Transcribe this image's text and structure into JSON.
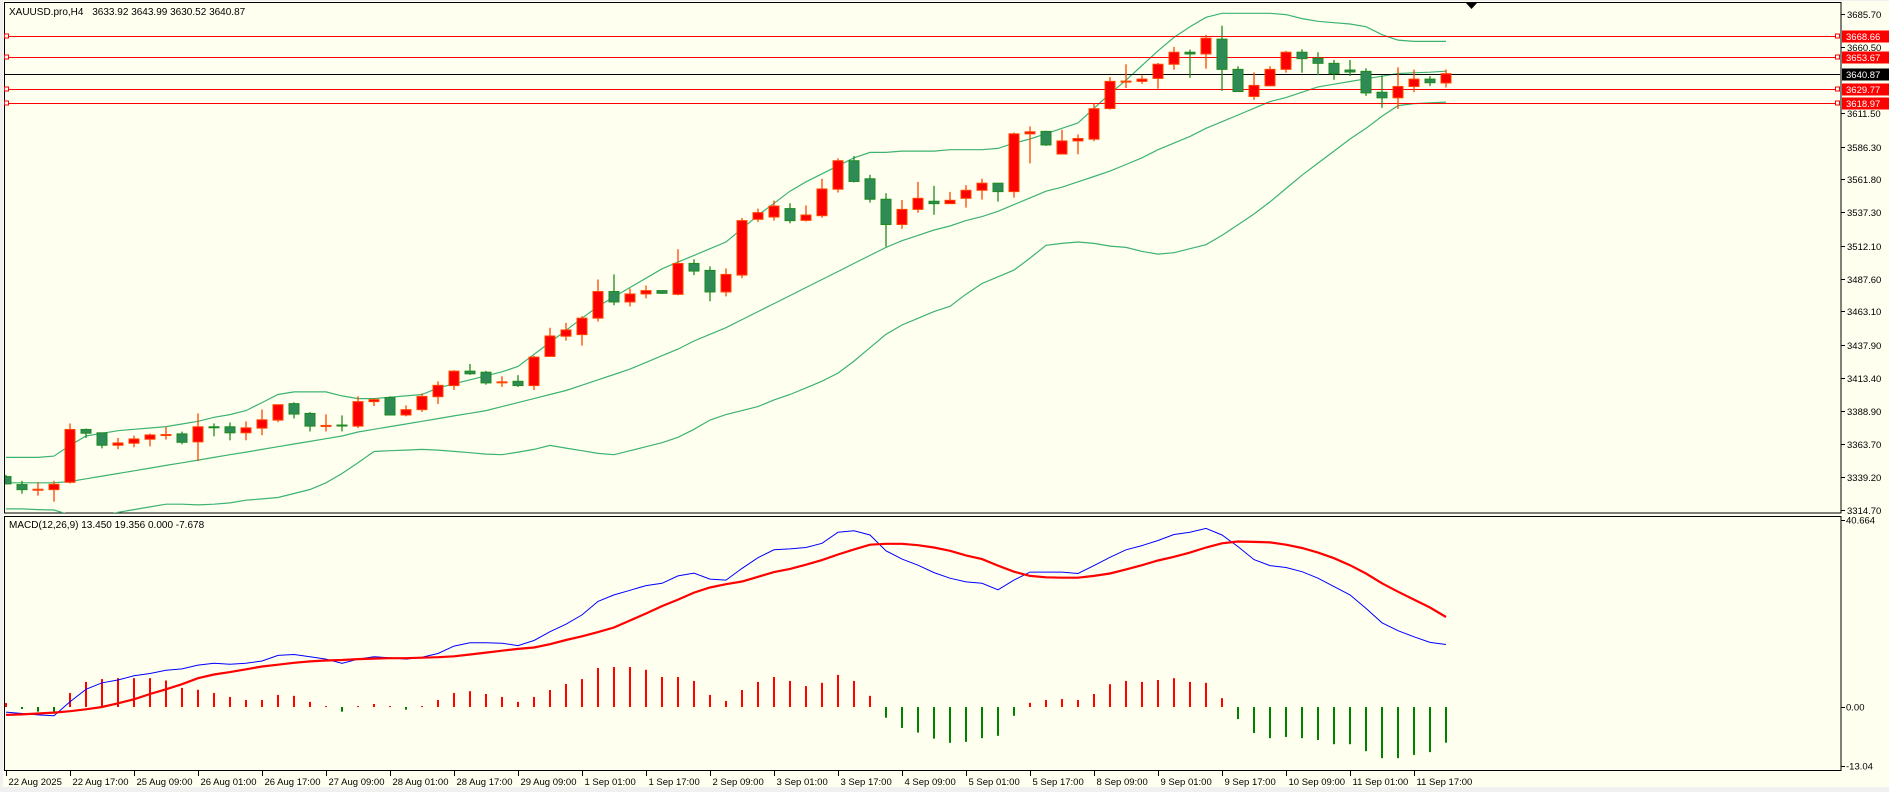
{
  "header": {
    "symbol": "XAUUSD.pro,H4",
    "open": "3633.92",
    "high": "3643.99",
    "low": "3630.52",
    "close": "3640.87"
  },
  "colors": {
    "background": "#fffff0",
    "bull_body": "#ff0000",
    "bull_edge": "#ff4500",
    "bear_body": "#2e8b57",
    "bear_edge": "#1e8a1e",
    "bands": "#3cb371",
    "level_line": "#ff0000",
    "price_line": "#000000",
    "macd_main": "#0000ff",
    "macd_signal": "#ff0000",
    "hist_up": "#ff0000",
    "hist_down": "#008000"
  },
  "price_axis": {
    "ticks": [
      "3685.70",
      "3660.50",
      "3611.50",
      "3586.30",
      "3561.80",
      "3537.30",
      "3512.10",
      "3487.60",
      "3463.10",
      "3437.90",
      "3413.40",
      "3388.90",
      "3363.70",
      "3339.20",
      "3314.70"
    ]
  },
  "price_lines": [
    {
      "value": "3668.66",
      "kind": "level"
    },
    {
      "value": "3653.67",
      "kind": "level"
    },
    {
      "value": "3640.87",
      "kind": "current"
    },
    {
      "value": "3629.77",
      "kind": "level"
    },
    {
      "value": "3618.97",
      "kind": "level"
    }
  ],
  "time_axis": {
    "labels": [
      "22 Aug 2025",
      "22 Aug 17:00",
      "25 Aug 09:00",
      "26 Aug 01:00",
      "26 Aug 17:00",
      "27 Aug 09:00",
      "28 Aug 01:00",
      "28 Aug 17:00",
      "29 Aug 09:00",
      "1 Sep 01:00",
      "1 Sep 17:00",
      "2 Sep 09:00",
      "3 Sep 01:00",
      "3 Sep 17:00",
      "4 Sep 09:00",
      "5 Sep 01:00",
      "5 Sep 17:00",
      "8 Sep 09:00",
      "9 Sep 01:00",
      "9 Sep 17:00",
      "10 Sep 09:00",
      "11 Sep 01:00",
      "11 Sep 17:00"
    ]
  },
  "macd_panel": {
    "label": "MACD(12,26,9) 13.450 19.356 0.000 -7.678",
    "axis_ticks": [
      "40.664",
      "0.00",
      "-13.04"
    ]
  },
  "chart_data": {
    "type": "candlestick",
    "title": "XAUUSD.pro,H4",
    "ylim": [
      3312.5,
      3688.0
    ],
    "ohlc": [
      [
        3339.7,
        3341,
        3334,
        3334.2
      ],
      [
        3333.7,
        3336.5,
        3326.9,
        3329.9
      ],
      [
        3329.9,
        3335.4,
        3325.4,
        3330.2
      ],
      [
        3329.9,
        3336.5,
        3320.9,
        3333.9
      ],
      [
        3335.4,
        3379.4,
        3334.5,
        3374.9
      ],
      [
        3374.9,
        3375.6,
        3368.6,
        3372.1
      ],
      [
        3372.4,
        3372.4,
        3360.8,
        3363.1
      ],
      [
        3363.1,
        3368.6,
        3360.1,
        3364.8
      ],
      [
        3364.6,
        3370.3,
        3361.6,
        3367.8
      ],
      [
        3367.6,
        3371.8,
        3362.3,
        3370.8
      ],
      [
        3370.7,
        3376.9,
        3367.3,
        3371.1
      ],
      [
        3371.6,
        3373.3,
        3363.8,
        3365.3
      ],
      [
        3365.6,
        3386.9,
        3351.3,
        3376.9
      ],
      [
        3376.9,
        3379.4,
        3369.8,
        3376.7
      ],
      [
        3376.9,
        3380.1,
        3366.8,
        3372.4
      ],
      [
        3372.4,
        3380.9,
        3366.8,
        3376.1
      ],
      [
        3375.9,
        3389.9,
        3370.6,
        3382.1
      ],
      [
        3381.9,
        3393.4,
        3380.4,
        3393.4
      ],
      [
        3394.2,
        3395.2,
        3383.1,
        3386.4
      ],
      [
        3386.9,
        3387.9,
        3373.4,
        3377.4
      ],
      [
        3377.7,
        3386.2,
        3373.4,
        3377.9
      ],
      [
        3378.2,
        3385.4,
        3373.4,
        3378.0
      ],
      [
        3377.4,
        3399.7,
        3375.9,
        3395.7
      ],
      [
        3395.7,
        3398.2,
        3392.4,
        3397.2
      ],
      [
        3398.7,
        3399.7,
        3385.7,
        3385.7
      ],
      [
        3385.7,
        3392.9,
        3384.7,
        3389.7
      ],
      [
        3389.7,
        3401.9,
        3388.0,
        3399.6
      ],
      [
        3399.4,
        3410.9,
        3393.9,
        3407.9
      ],
      [
        3407.7,
        3419.2,
        3404.4,
        3418.5
      ],
      [
        3418.5,
        3423.8,
        3415.7,
        3416.5
      ],
      [
        3417.7,
        3418.7,
        3408.4,
        3409.7
      ],
      [
        3410.3,
        3414.7,
        3406.7,
        3410.5
      ],
      [
        3410.9,
        3415.5,
        3406.7,
        3407.7
      ],
      [
        3407.7,
        3430.0,
        3404.4,
        3429.0
      ],
      [
        3429.5,
        3450.9,
        3429.5,
        3444.8
      ],
      [
        3444.6,
        3454.6,
        3441.3,
        3449.3
      ],
      [
        3445.8,
        3459.6,
        3437.6,
        3458.1
      ],
      [
        3458.1,
        3487.0,
        3455.6,
        3478.0
      ],
      [
        3478.0,
        3490.8,
        3467.7,
        3470.2
      ],
      [
        3470.2,
        3480.2,
        3466.9,
        3476.2
      ],
      [
        3476.2,
        3482.5,
        3472.9,
        3478.7
      ],
      [
        3478.7,
        3478.7,
        3476.2,
        3476.7
      ],
      [
        3475.9,
        3509.6,
        3475.2,
        3499.0
      ],
      [
        3499.0,
        3502.1,
        3490.3,
        3493.3
      ],
      [
        3493.8,
        3496.8,
        3470.7,
        3477.7
      ],
      [
        3477.7,
        3495.3,
        3474.4,
        3490.8
      ],
      [
        3490.3,
        3533,
        3488,
        3531
      ],
      [
        3532,
        3540,
        3530,
        3537
      ],
      [
        3533.7,
        3546,
        3531,
        3541.9
      ],
      [
        3540,
        3544,
        3529,
        3531
      ],
      [
        3531.2,
        3542.4,
        3530.4,
        3535.2
      ],
      [
        3534.7,
        3562.3,
        3533.2,
        3554.7
      ],
      [
        3554.5,
        3577.6,
        3552.0,
        3575.8
      ],
      [
        3575.8,
        3579.3,
        3559.5,
        3560.3
      ],
      [
        3562.3,
        3565.3,
        3544.5,
        3547.0
      ],
      [
        3547.0,
        3551.5,
        3511.6,
        3528.1
      ],
      [
        3528.1,
        3546.5,
        3524.9,
        3539.4
      ],
      [
        3539.4,
        3560.0,
        3536.9,
        3547.7
      ],
      [
        3545.5,
        3557.0,
        3535.4,
        3543.7
      ],
      [
        3543.7,
        3552.5,
        3543.7,
        3546.2
      ],
      [
        3547.7,
        3557.5,
        3540.7,
        3553.7
      ],
      [
        3553.7,
        3562.3,
        3546.7,
        3559.0
      ],
      [
        3559.0,
        3559.0,
        3545.2,
        3552.7
      ],
      [
        3552.7,
        3596.9,
        3548.2,
        3595.9
      ],
      [
        3595.9,
        3601.4,
        3573.8,
        3597.4
      ],
      [
        3597.7,
        3598.2,
        3586.9,
        3587.6
      ],
      [
        3580.8,
        3598.9,
        3580.8,
        3590.6
      ],
      [
        3590.6,
        3595.4,
        3580.6,
        3592.4
      ],
      [
        3591.9,
        3618.8,
        3590.4,
        3614.7
      ],
      [
        3614.8,
        3638.3,
        3614.0,
        3635.1
      ],
      [
        3635.1,
        3647.9,
        3630.1,
        3635.3
      ],
      [
        3635.1,
        3639.6,
        3633.3,
        3636.8
      ],
      [
        3637.3,
        3648.9,
        3629.6,
        3647.9
      ],
      [
        3647.9,
        3660.9,
        3643.8,
        3656.9
      ],
      [
        3656.9,
        3658.9,
        3637.8,
        3655.6
      ],
      [
        3655.6,
        3669.9,
        3644.6,
        3667.4
      ],
      [
        3666.7,
        3676.7,
        3628.0,
        3644.1
      ],
      [
        3644.1,
        3646.4,
        3627.5,
        3627.5
      ],
      [
        3623.8,
        3641.8,
        3621.3,
        3632.1
      ],
      [
        3631.8,
        3646.4,
        3631.8,
        3644.1
      ],
      [
        3644.1,
        3657.9,
        3641.6,
        3656.9
      ],
      [
        3656.9,
        3659.1,
        3641.6,
        3652.1
      ],
      [
        3652.4,
        3656.9,
        3639.8,
        3648.6
      ],
      [
        3648.6,
        3651.1,
        3636.3,
        3640.8
      ],
      [
        3643.6,
        3651.1,
        3639.1,
        3642.1
      ],
      [
        3642.6,
        3644.9,
        3624.3,
        3626.5
      ],
      [
        3627.0,
        3639.6,
        3615.3,
        3622.8
      ],
      [
        3622.8,
        3645.6,
        3614.5,
        3631.3
      ],
      [
        3631.3,
        3643.9,
        3627.0,
        3636.8
      ],
      [
        3636.8,
        3639.1,
        3631.6,
        3634.1
      ],
      [
        3633.92,
        3643.99,
        3630.52,
        3640.87
      ]
    ],
    "bollinger": {
      "upper": [
        3354,
        3354,
        3354,
        3355,
        3363,
        3370,
        3372,
        3374,
        3375,
        3376,
        3377,
        3379,
        3381,
        3384,
        3386,
        3389,
        3395,
        3401,
        3403,
        3403,
        3403,
        3400,
        3398,
        3398,
        3399,
        3400,
        3401,
        3406,
        3409,
        3412,
        3415,
        3418,
        3422,
        3431,
        3440,
        3449,
        3458,
        3467,
        3474,
        3481,
        3488,
        3495,
        3500,
        3505,
        3510,
        3515,
        3525,
        3535,
        3544,
        3553,
        3560,
        3566,
        3572,
        3578,
        3582,
        3582,
        3583,
        3583,
        3583,
        3584,
        3584,
        3584,
        3585,
        3589,
        3592,
        3596,
        3600,
        3604,
        3615,
        3626,
        3636,
        3647,
        3658,
        3668,
        3676,
        3683,
        3686,
        3686,
        3686,
        3686,
        3685,
        3682,
        3680,
        3679,
        3678,
        3676,
        3670,
        3666,
        3665,
        3665,
        3665
      ],
      "middle": [
        3335,
        3335,
        3335,
        3335,
        3336,
        3338,
        3340,
        3342,
        3344,
        3346,
        3348,
        3350,
        3352,
        3354,
        3356,
        3358,
        3360,
        3362,
        3364,
        3366,
        3368,
        3370,
        3373,
        3375,
        3377,
        3379,
        3381,
        3383,
        3385,
        3387,
        3389,
        3392,
        3395,
        3398,
        3401,
        3404,
        3408,
        3412,
        3416,
        3420,
        3425,
        3430,
        3435,
        3441,
        3446,
        3451,
        3457,
        3463,
        3469,
        3475,
        3481,
        3487,
        3493,
        3499,
        3505,
        3511,
        3516,
        3520,
        3524,
        3527,
        3531,
        3534,
        3538,
        3543,
        3548,
        3553,
        3556,
        3560,
        3564,
        3568,
        3573,
        3578,
        3584,
        3589,
        3594,
        3600,
        3605,
        3610,
        3615,
        3620,
        3623,
        3627,
        3631,
        3633,
        3635,
        3637,
        3639,
        3641,
        3641.5,
        3642,
        3642.7
      ],
      "lower": [
        3315.5,
        3315.5,
        3315,
        3314.7,
        3311,
        3308,
        3310,
        3313,
        3315,
        3317,
        3319,
        3319,
        3318.5,
        3319,
        3320,
        3322,
        3323,
        3324,
        3327,
        3330,
        3335,
        3342,
        3350,
        3358.4,
        3359,
        3359.5,
        3360,
        3359.5,
        3358.5,
        3357.5,
        3356.5,
        3356,
        3358,
        3360,
        3363,
        3361,
        3359,
        3357,
        3356,
        3359,
        3362,
        3365,
        3369,
        3375,
        3382,
        3386,
        3389,
        3392,
        3397,
        3401,
        3406,
        3411,
        3417,
        3426,
        3436,
        3446,
        3453,
        3458,
        3463,
        3467,
        3476,
        3484,
        3489,
        3494,
        3503,
        3512.6,
        3514,
        3515,
        3514,
        3512,
        3511,
        3508,
        3506,
        3507,
        3510,
        3513,
        3520,
        3528,
        3536,
        3545,
        3555,
        3565,
        3574,
        3583,
        3592,
        3600,
        3609,
        3617,
        3618.5,
        3619,
        3619.6
      ]
    },
    "macd": {
      "ylim": [
        -13.04,
        40.664
      ],
      "main": [
        -1.1,
        -1.4,
        -1.7,
        -1.9,
        1.15,
        3.8,
        5.2,
        5.8,
        6.7,
        7.2,
        7.9,
        8.2,
        9.0,
        9.4,
        9.2,
        9.4,
        9.9,
        11.1,
        11.3,
        10.8,
        10.3,
        9.4,
        10.3,
        10.8,
        10.6,
        10.3,
        10.7,
        11.5,
        13.1,
        13.8,
        13.8,
        13.7,
        13.2,
        14.3,
        16.2,
        17.8,
        19.8,
        22.7,
        24.1,
        25.1,
        26.1,
        26.6,
        28.2,
        28.8,
        27.5,
        27.3,
        29.8,
        32.1,
        33.8,
        34.0,
        34.3,
        35.2,
        37.6,
        37.9,
        37.0,
        33.6,
        31.8,
        30.5,
        28.9,
        27.7,
        26.9,
        26.6,
        25.2,
        27.3,
        29.0,
        29.0,
        29.0,
        28.7,
        30.4,
        32.2,
        33.8,
        34.7,
        35.8,
        37.1,
        37.6,
        38.4,
        37.0,
        34.5,
        31.7,
        30.4,
        30.0,
        29.1,
        27.7,
        25.9,
        24.1,
        21.2,
        18.1,
        16.4,
        15.1,
        13.9,
        13.45
      ],
      "signal": [
        -1.7,
        -1.6,
        -1.4,
        -1.2,
        -0.9,
        -0.5,
        0,
        0.8,
        1.65,
        2.8,
        3.8,
        4.9,
        6.2,
        7.0,
        7.5,
        8.1,
        8.7,
        9.1,
        9.5,
        9.8,
        10.0,
        10.1,
        10.3,
        10.4,
        10.5,
        10.5,
        10.6,
        10.7,
        10.9,
        11.3,
        11.7,
        12.1,
        12.5,
        12.8,
        13.5,
        14.4,
        15.2,
        16.1,
        17.1,
        18.6,
        20.1,
        21.7,
        23.1,
        24.6,
        25.7,
        26.4,
        27.0,
        28.0,
        29.0,
        29.7,
        30.6,
        31.6,
        32.8,
        33.9,
        34.9,
        35.1,
        35.1,
        34.8,
        34.3,
        33.6,
        32.6,
        31.8,
        30.4,
        29.1,
        28.2,
        27.9,
        27.8,
        27.8,
        28.2,
        28.7,
        29.6,
        30.5,
        31.5,
        32.3,
        33.2,
        34.3,
        35.2,
        35.6,
        35.5,
        35.4,
        34.9,
        34.2,
        33.2,
        32.0,
        30.5,
        28.7,
        26.6,
        24.8,
        23.1,
        21.4,
        19.356
      ],
      "histogram": [
        0.86,
        -0.43,
        -1.0,
        -1.0,
        3.0,
        5.4,
        6.0,
        6.2,
        6.2,
        6.2,
        5.7,
        4.1,
        3.7,
        3.0,
        2.15,
        1.5,
        1.5,
        2.6,
        2.4,
        1.1,
        0.2,
        -1.0,
        0.2,
        0.65,
        0.2,
        -0.57,
        0.2,
        1.5,
        3.0,
        3.4,
        2.8,
        2.15,
        1.1,
        2.15,
        3.65,
        4.95,
        6.0,
        8.4,
        8.6,
        8.6,
        8.0,
        6.45,
        6.45,
        5.6,
        2.6,
        1.3,
        3.65,
        5.4,
        6.45,
        5.6,
        4.5,
        5.2,
        6.9,
        5.6,
        2.4,
        -2.3,
        -4.5,
        -5.5,
        -6.8,
        -7.7,
        -7.5,
        -6.7,
        -6.2,
        -1.9,
        0.9,
        1.5,
        1.7,
        1.5,
        2.8,
        4.9,
        5.6,
        5.4,
        5.8,
        6.2,
        5.4,
        5.2,
        1.9,
        -2.6,
        -5.6,
        -6.7,
        -6.45,
        -6.7,
        -7.1,
        -8.0,
        -8.0,
        -9.5,
        -11.0,
        -11.0,
        -10.3,
        -9.7,
        -7.678
      ]
    }
  }
}
